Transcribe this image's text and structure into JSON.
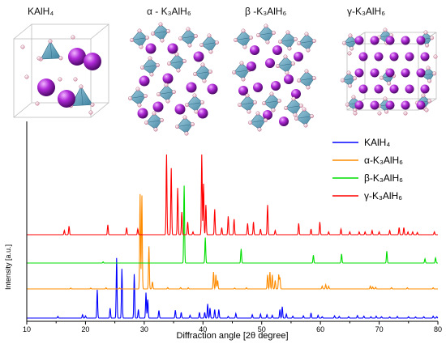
{
  "crystal_structures": [
    {
      "title": "KAlH₄",
      "atoms": [
        "K",
        "Al",
        "H"
      ]
    },
    {
      "title": "α - K₃AlH₆",
      "atoms": [
        "K",
        "Al",
        "H"
      ]
    },
    {
      "title": "β -K₃AlH₆",
      "atoms": [
        "K",
        "Al",
        "H"
      ]
    },
    {
      "title": "γ-K₃AlH₆",
      "atoms": [
        "K",
        "Al",
        "H"
      ]
    }
  ],
  "colors": {
    "K_atom": "#b02ad8",
    "Al_octahedron": "#5aa2c0",
    "H_atom": "#f2e8ec",
    "cell_edges": "#bbbbbb"
  },
  "chart_data": {
    "type": "line",
    "xlabel": "Diffraction angle [2θ degree]",
    "ylabel": "Intensity [a.u.]",
    "xlim": [
      10,
      80
    ],
    "xticks": [
      10,
      20,
      30,
      40,
      50,
      60,
      70,
      80
    ],
    "yticks": "none",
    "grid": false,
    "legend_position": "top-right",
    "stacked_offset": true,
    "series": [
      {
        "name": "KAlH₄",
        "color": "#0000ff",
        "peaks": [
          [
            15.3,
            0.06
          ],
          [
            19.5,
            0.12
          ],
          [
            20.0,
            0.08
          ],
          [
            22.0,
            1.0
          ],
          [
            24.2,
            0.35
          ],
          [
            25.3,
            2.12
          ],
          [
            26.2,
            1.74
          ],
          [
            28.3,
            1.55
          ],
          [
            29.0,
            0.3
          ],
          [
            30.3,
            0.9
          ],
          [
            30.6,
            0.65
          ],
          [
            32.5,
            0.27
          ],
          [
            35.3,
            0.28
          ],
          [
            36.3,
            0.2
          ],
          [
            37.8,
            0.1
          ],
          [
            39.4,
            0.2
          ],
          [
            40.3,
            0.2
          ],
          [
            40.8,
            0.5
          ],
          [
            41.2,
            0.35
          ],
          [
            42.0,
            0.3
          ],
          [
            42.7,
            0.3
          ],
          [
            44.3,
            0.06
          ],
          [
            45.6,
            0.16
          ],
          [
            48.4,
            0.12
          ],
          [
            49.8,
            0.14
          ],
          [
            50.9,
            0.12
          ],
          [
            51.8,
            0.1
          ],
          [
            53.1,
            0.3
          ],
          [
            53.5,
            0.4
          ],
          [
            54.2,
            0.14
          ],
          [
            55.3,
            0.07
          ],
          [
            57.1,
            0.08
          ],
          [
            58.4,
            0.18
          ],
          [
            59.6,
            0.1
          ],
          [
            60.3,
            0.05
          ],
          [
            62.4,
            0.08
          ],
          [
            63.2,
            0.06
          ],
          [
            64.8,
            0.05
          ],
          [
            66.3,
            0.09
          ],
          [
            67.4,
            0.07
          ],
          [
            68.6,
            0.05
          ],
          [
            69.5,
            0.07
          ],
          [
            70.4,
            0.05
          ],
          [
            71.8,
            0.04
          ],
          [
            73.1,
            0.06
          ],
          [
            75.0,
            0.05
          ],
          [
            76.2,
            0.04
          ],
          [
            77.6,
            0.05
          ],
          [
            79.2,
            0.07
          ],
          [
            79.8,
            0.05
          ]
        ]
      },
      {
        "name": "α-K₃AlH₆",
        "color": "#ff8c00",
        "peaks": [
          [
            17.5,
            0.03
          ],
          [
            20.9,
            0.03
          ],
          [
            23.5,
            0.04
          ],
          [
            25.8,
            0.03
          ],
          [
            29.3,
            3.35
          ],
          [
            29.6,
            3.3
          ],
          [
            30.8,
            1.5
          ],
          [
            31.4,
            0.25
          ],
          [
            34.0,
            0.05
          ],
          [
            36.2,
            0.05
          ],
          [
            37.5,
            0.04
          ],
          [
            41.8,
            0.6
          ],
          [
            42.2,
            0.5
          ],
          [
            42.5,
            0.3
          ],
          [
            45.4,
            0.03
          ],
          [
            47.4,
            0.04
          ],
          [
            51.0,
            0.5
          ],
          [
            51.4,
            0.6
          ],
          [
            51.8,
            0.5
          ],
          [
            52.3,
            0.3
          ],
          [
            52.9,
            0.5
          ],
          [
            53.1,
            0.4
          ],
          [
            60.3,
            0.1
          ],
          [
            60.9,
            0.15
          ],
          [
            61.4,
            0.1
          ],
          [
            68.5,
            0.1
          ],
          [
            68.9,
            0.07
          ],
          [
            69.4,
            0.06
          ],
          [
            72.1,
            0.05
          ],
          [
            74.8,
            0.04
          ],
          [
            79.2,
            0.04
          ]
        ]
      },
      {
        "name": "β-K₃AlH₆",
        "color": "#00dd00",
        "peaks": [
          [
            23.0,
            0.04
          ],
          [
            36.8,
            2.73
          ],
          [
            40.4,
            0.9
          ],
          [
            46.5,
            0.5
          ],
          [
            58.8,
            0.28
          ],
          [
            63.6,
            0.32
          ],
          [
            71.3,
            0.42
          ],
          [
            77.8,
            0.15
          ],
          [
            79.6,
            0.18
          ]
        ]
      },
      {
        "name": "γ-K₃AlH₆",
        "color": "#ff0000",
        "peaks": [
          [
            16.4,
            0.15
          ],
          [
            17.2,
            0.3
          ],
          [
            23.8,
            0.35
          ],
          [
            27.0,
            0.25
          ],
          [
            28.9,
            0.2
          ],
          [
            33.8,
            2.83
          ],
          [
            34.6,
            2.35
          ],
          [
            35.7,
            1.65
          ],
          [
            36.4,
            0.8
          ],
          [
            37.4,
            0.45
          ],
          [
            38.3,
            0.1
          ],
          [
            39.8,
            2.83
          ],
          [
            40.1,
            1.8
          ],
          [
            40.5,
            1.05
          ],
          [
            42.0,
            0.9
          ],
          [
            43.2,
            0.25
          ],
          [
            44.3,
            0.65
          ],
          [
            45.3,
            0.55
          ],
          [
            47.6,
            0.4
          ],
          [
            48.6,
            0.45
          ],
          [
            49.8,
            0.2
          ],
          [
            51.0,
            1.05
          ],
          [
            52.3,
            0.15
          ],
          [
            56.3,
            0.4
          ],
          [
            58.4,
            0.2
          ],
          [
            59.9,
            0.45
          ],
          [
            61.4,
            0.1
          ],
          [
            63.5,
            0.2
          ],
          [
            65.0,
            0.1
          ],
          [
            66.6,
            0.1
          ],
          [
            67.6,
            0.1
          ],
          [
            68.8,
            0.15
          ],
          [
            70.0,
            0.1
          ],
          [
            71.8,
            0.15
          ],
          [
            73.4,
            0.25
          ],
          [
            74.2,
            0.25
          ],
          [
            74.9,
            0.1
          ],
          [
            75.7,
            0.1
          ],
          [
            76.5,
            0.08
          ],
          [
            79.4,
            0.1
          ]
        ]
      }
    ]
  }
}
